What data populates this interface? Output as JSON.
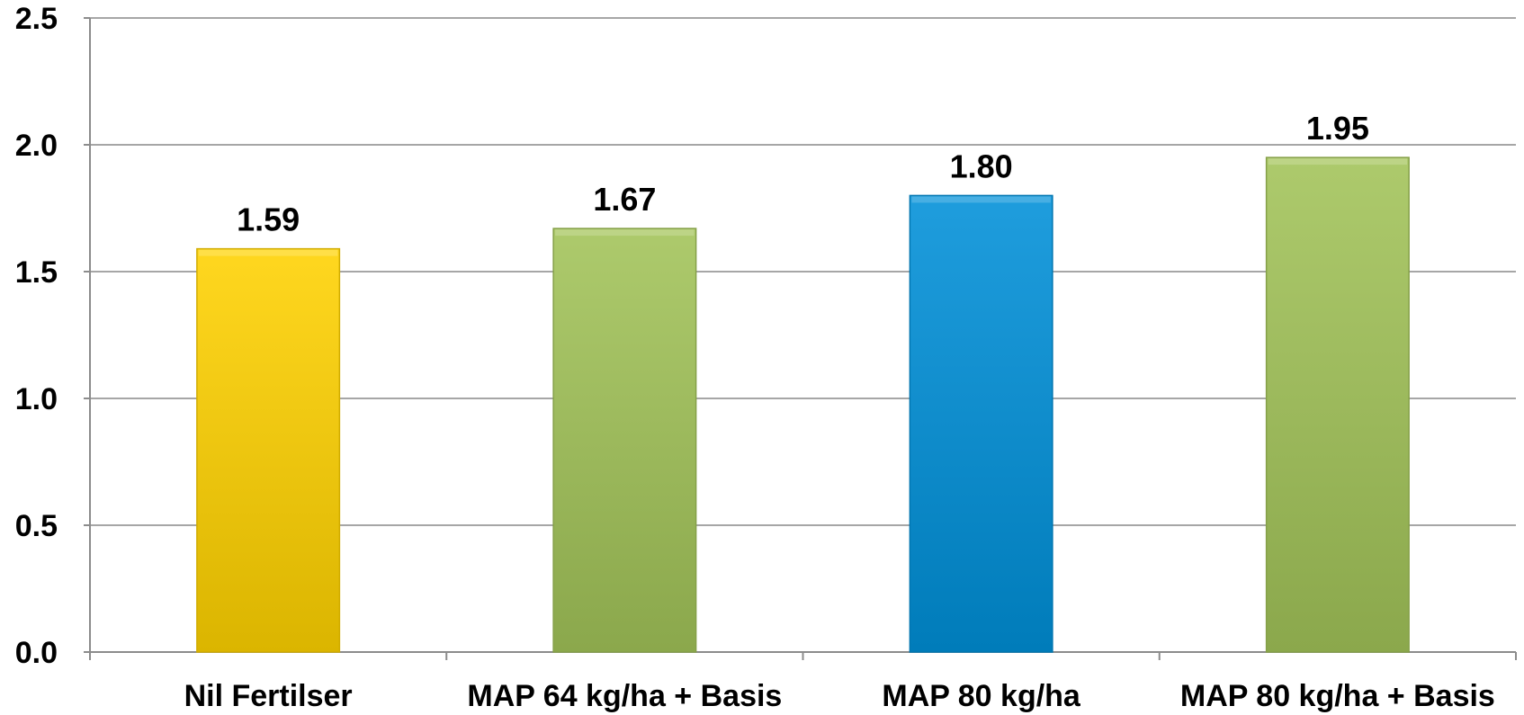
{
  "chart_data": {
    "type": "bar",
    "categories": [
      "Nil Fertilser",
      "MAP 64 kg/ha + Basis",
      "MAP 80 kg/ha",
      "MAP 80 kg/ha + Basis"
    ],
    "values": [
      1.59,
      1.67,
      1.8,
      1.95
    ],
    "value_labels": [
      "1.59",
      "1.67",
      "1.80",
      "1.95"
    ],
    "ylim": [
      0,
      2.5
    ],
    "yticks": [
      0.0,
      0.5,
      1.0,
      1.5,
      2.0,
      2.5
    ],
    "ytick_labels": [
      "0.0",
      "0.5",
      "1.0",
      "1.5",
      "2.0",
      "2.5"
    ],
    "grid": true,
    "legend": "none",
    "title": "",
    "xlabel": "",
    "ylabel": "",
    "bar_colors": [
      "#FFD200",
      "#A2C358",
      "#0090D8",
      "#A2C358"
    ],
    "colors": {
      "grid": "#A6A6A6",
      "axis": "#8C8C8C"
    }
  }
}
